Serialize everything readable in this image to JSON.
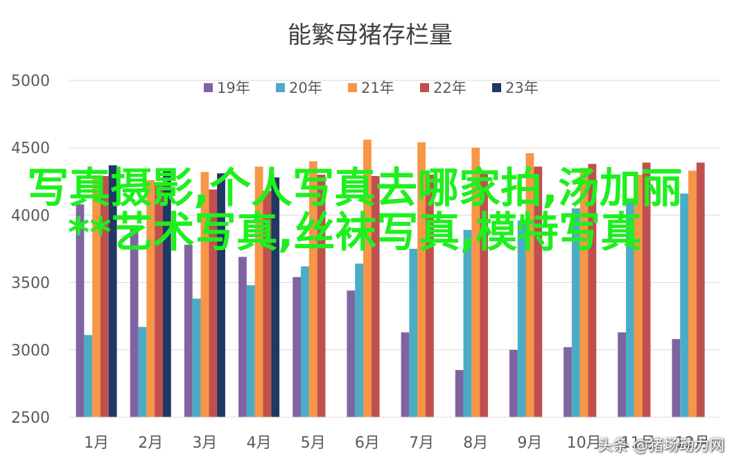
{
  "chart_data": {
    "type": "bar",
    "title": "能繁母猪存栏量",
    "categories": [
      "1月",
      "2月",
      "3月",
      "4月",
      "5月",
      "6月",
      "7月",
      "8月",
      "9月",
      "10月",
      "11月",
      "12月"
    ],
    "ylim": [
      2500,
      5000
    ],
    "yticks": [
      "2500",
      "3000",
      "3500",
      "4000",
      "4500",
      "5000"
    ],
    "grid": true,
    "legend": "top",
    "series": [
      {
        "name": "19年",
        "color": "#8064a2",
        "values": [
          4080,
          3900,
          3780,
          3690,
          3540,
          3440,
          3130,
          2850,
          3000,
          3020,
          3130,
          3080
        ]
      },
      {
        "name": "20年",
        "color": "#4bacc6",
        "values": [
          3110,
          3170,
          3380,
          3480,
          3620,
          3640,
          3750,
          3890,
          3960,
          4050,
          4100,
          4160
        ]
      },
      {
        "name": "21年",
        "color": "#f79646",
        "values": [
          4270,
          4260,
          4320,
          4360,
          4400,
          4560,
          4540,
          4500,
          4460,
          4350,
          4300,
          4330
        ]
      },
      {
        "name": "22年",
        "color": "#c0504d",
        "values": [
          4290,
          4240,
          4190,
          4180,
          4300,
          4290,
          4300,
          4330,
          4360,
          4380,
          4390,
          4390
        ]
      },
      {
        "name": "23年",
        "color": "#1f3864",
        "values": [
          4370,
          4340,
          4310,
          4280,
          null,
          null,
          null,
          null,
          null,
          null,
          null,
          null
        ]
      }
    ]
  },
  "overlay_text": "写真摄影,个人写真去哪家拍,汤加丽**艺术写真,丝袜写真,模特写真",
  "watermark": "头条 @猪场动力网"
}
